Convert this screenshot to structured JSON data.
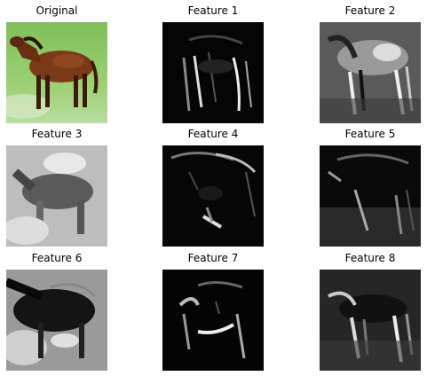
{
  "panels": [
    {
      "title": "Original",
      "image": "horse-photo"
    },
    {
      "title": "Feature 1",
      "image": "feature-map-1"
    },
    {
      "title": "Feature 2",
      "image": "feature-map-2"
    },
    {
      "title": "Feature 3",
      "image": "feature-map-3"
    },
    {
      "title": "Feature 4",
      "image": "feature-map-4"
    },
    {
      "title": "Feature 5",
      "image": "feature-map-5"
    },
    {
      "title": "Feature 6",
      "image": "feature-map-6"
    },
    {
      "title": "Feature 7",
      "image": "feature-map-7"
    },
    {
      "title": "Feature 8",
      "image": "feature-map-8"
    }
  ]
}
